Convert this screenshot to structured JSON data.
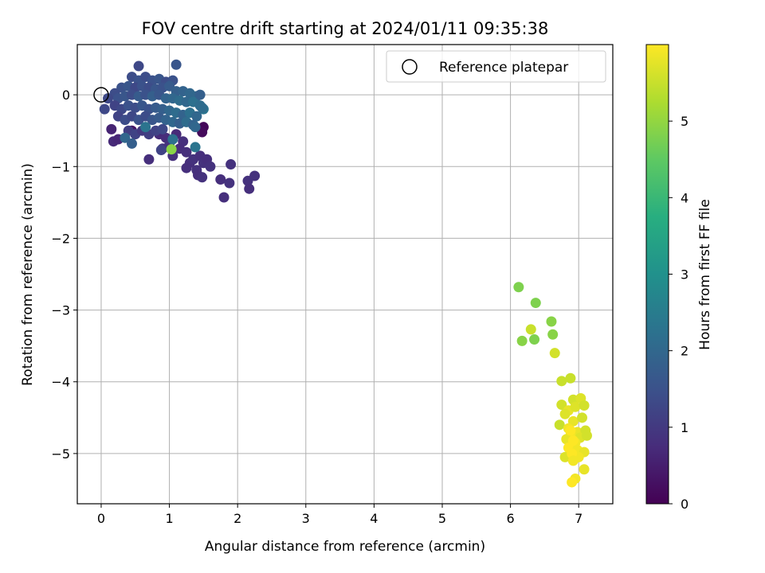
{
  "chart_data": {
    "type": "scatter",
    "title": "FOV centre drift starting at 2024/01/11 09:35:38",
    "xlabel": "Angular distance from reference (arcmin)",
    "ylabel": "Rotation from reference (arcmin)",
    "xlim": [
      -0.35,
      7.5
    ],
    "ylim": [
      -5.7,
      0.7
    ],
    "xticks": [
      0,
      1,
      2,
      3,
      4,
      5,
      6,
      7
    ],
    "yticks": [
      0,
      -1,
      -2,
      -3,
      -4,
      -5
    ],
    "xtick_labels": [
      "0",
      "1",
      "2",
      "3",
      "4",
      "5",
      "6",
      "7"
    ],
    "ytick_labels": [
      "0",
      "−1",
      "−2",
      "−3",
      "−4",
      "−5"
    ],
    "grid": true,
    "legend": {
      "position": "top-right",
      "entries": [
        {
          "label": "Reference platepar",
          "marker": "open-circle"
        }
      ]
    },
    "reference_point": {
      "x": 0,
      "y": 0
    },
    "colorbar": {
      "label": "Hours from first FF file",
      "colormap": "viridis",
      "range": [
        0,
        6
      ],
      "ticks": [
        0,
        1,
        2,
        3,
        4,
        5
      ],
      "tick_labels": [
        "0",
        "1",
        "2",
        "3",
        "4",
        "5"
      ]
    },
    "points": [
      {
        "x": 0.45,
        "y": -0.5,
        "c": 0.3
      },
      {
        "x": 1.5,
        "y": -0.45,
        "c": 0.1
      },
      {
        "x": 1.48,
        "y": -0.52,
        "c": 0.15
      },
      {
        "x": 0.15,
        "y": -0.48,
        "c": 0.6
      },
      {
        "x": 0.18,
        "y": -0.65,
        "c": 0.7
      },
      {
        "x": 0.25,
        "y": -0.62,
        "c": 0.65
      },
      {
        "x": 0.7,
        "y": -0.9,
        "c": 0.8
      },
      {
        "x": 0.85,
        "y": -0.55,
        "c": 0.7
      },
      {
        "x": 0.95,
        "y": -0.6,
        "c": 0.75
      },
      {
        "x": 1.1,
        "y": -0.55,
        "c": 0.7
      },
      {
        "x": 1.2,
        "y": -0.65,
        "c": 0.8
      },
      {
        "x": 1.05,
        "y": -0.85,
        "c": 0.8
      },
      {
        "x": 1.15,
        "y": -0.75,
        "c": 0.75
      },
      {
        "x": 1.25,
        "y": -0.8,
        "c": 0.8
      },
      {
        "x": 1.3,
        "y": -0.95,
        "c": 0.8
      },
      {
        "x": 1.35,
        "y": -0.9,
        "c": 0.85
      },
      {
        "x": 1.45,
        "y": -0.85,
        "c": 0.8
      },
      {
        "x": 1.5,
        "y": -0.95,
        "c": 0.85
      },
      {
        "x": 1.55,
        "y": -0.9,
        "c": 0.8
      },
      {
        "x": 1.6,
        "y": -1.0,
        "c": 0.85
      },
      {
        "x": 1.25,
        "y": -1.02,
        "c": 0.8
      },
      {
        "x": 1.4,
        "y": -1.05,
        "c": 0.85
      },
      {
        "x": 1.42,
        "y": -1.12,
        "c": 0.8
      },
      {
        "x": 1.48,
        "y": -1.15,
        "c": 0.85
      },
      {
        "x": 1.75,
        "y": -1.18,
        "c": 0.8
      },
      {
        "x": 1.88,
        "y": -1.23,
        "c": 0.85
      },
      {
        "x": 1.8,
        "y": -1.43,
        "c": 0.8
      },
      {
        "x": 1.9,
        "y": -0.97,
        "c": 0.85
      },
      {
        "x": 2.15,
        "y": -1.2,
        "c": 0.85
      },
      {
        "x": 2.17,
        "y": -1.31,
        "c": 0.8
      },
      {
        "x": 2.25,
        "y": -1.13,
        "c": 0.85
      },
      {
        "x": 1.0,
        "y": -0.7,
        "c": 0.9
      },
      {
        "x": 0.9,
        "y": -0.75,
        "c": 0.9
      },
      {
        "x": 0.55,
        "y": 0.4,
        "c": 1.3
      },
      {
        "x": 1.1,
        "y": 0.42,
        "c": 1.6
      },
      {
        "x": 0.45,
        "y": 0.25,
        "c": 1.4
      },
      {
        "x": 0.55,
        "y": 0.2,
        "c": 1.5
      },
      {
        "x": 0.65,
        "y": 0.25,
        "c": 1.4
      },
      {
        "x": 0.75,
        "y": 0.2,
        "c": 1.5
      },
      {
        "x": 0.85,
        "y": 0.22,
        "c": 1.6
      },
      {
        "x": 0.95,
        "y": 0.18,
        "c": 1.4
      },
      {
        "x": 1.05,
        "y": 0.2,
        "c": 1.5
      },
      {
        "x": 0.3,
        "y": 0.1,
        "c": 1.5
      },
      {
        "x": 0.4,
        "y": 0.12,
        "c": 1.6
      },
      {
        "x": 0.5,
        "y": 0.1,
        "c": 1.3
      },
      {
        "x": 0.6,
        "y": 0.12,
        "c": 1.5
      },
      {
        "x": 0.7,
        "y": 0.1,
        "c": 1.4
      },
      {
        "x": 0.8,
        "y": 0.08,
        "c": 1.6
      },
      {
        "x": 0.9,
        "y": 0.1,
        "c": 1.5
      },
      {
        "x": 1.0,
        "y": 0.12,
        "c": 1.7
      },
      {
        "x": 1.1,
        "y": 0.05,
        "c": 1.8
      },
      {
        "x": 1.2,
        "y": 0.05,
        "c": 1.9
      },
      {
        "x": 1.3,
        "y": 0.02,
        "c": 2.0
      },
      {
        "x": 1.4,
        "y": -0.02,
        "c": 2.0
      },
      {
        "x": 0.2,
        "y": 0.02,
        "c": 1.4
      },
      {
        "x": 0.1,
        "y": -0.05,
        "c": 1.3
      },
      {
        "x": 0.05,
        "y": -0.2,
        "c": 1.3
      },
      {
        "x": 0.25,
        "y": -0.05,
        "c": 1.5
      },
      {
        "x": 0.35,
        "y": -0.02,
        "c": 1.6
      },
      {
        "x": 0.45,
        "y": 0.0,
        "c": 1.4
      },
      {
        "x": 0.55,
        "y": -0.02,
        "c": 1.7
      },
      {
        "x": 0.65,
        "y": 0.0,
        "c": 1.5
      },
      {
        "x": 0.75,
        "y": -0.02,
        "c": 1.8
      },
      {
        "x": 0.85,
        "y": 0.0,
        "c": 1.6
      },
      {
        "x": 0.95,
        "y": -0.05,
        "c": 1.9
      },
      {
        "x": 1.05,
        "y": -0.05,
        "c": 2.0
      },
      {
        "x": 1.15,
        "y": -0.08,
        "c": 2.1
      },
      {
        "x": 1.25,
        "y": -0.1,
        "c": 2.0
      },
      {
        "x": 1.35,
        "y": -0.1,
        "c": 2.2
      },
      {
        "x": 1.45,
        "y": -0.15,
        "c": 2.1
      },
      {
        "x": 1.5,
        "y": -0.2,
        "c": 2.3
      },
      {
        "x": 0.2,
        "y": -0.15,
        "c": 1.2
      },
      {
        "x": 0.3,
        "y": -0.2,
        "c": 1.3
      },
      {
        "x": 0.4,
        "y": -0.15,
        "c": 1.5
      },
      {
        "x": 0.5,
        "y": -0.18,
        "c": 1.4
      },
      {
        "x": 0.6,
        "y": -0.15,
        "c": 1.6
      },
      {
        "x": 0.7,
        "y": -0.2,
        "c": 1.5
      },
      {
        "x": 0.8,
        "y": -0.18,
        "c": 1.7
      },
      {
        "x": 0.9,
        "y": -0.2,
        "c": 1.8
      },
      {
        "x": 1.0,
        "y": -0.22,
        "c": 2.0
      },
      {
        "x": 1.1,
        "y": -0.25,
        "c": 2.1
      },
      {
        "x": 1.2,
        "y": -0.28,
        "c": 1.9
      },
      {
        "x": 1.3,
        "y": -0.25,
        "c": 2.2
      },
      {
        "x": 1.4,
        "y": -0.3,
        "c": 2.0
      },
      {
        "x": 0.25,
        "y": -0.3,
        "c": 1.2
      },
      {
        "x": 0.35,
        "y": -0.35,
        "c": 1.4
      },
      {
        "x": 0.45,
        "y": -0.3,
        "c": 1.3
      },
      {
        "x": 0.55,
        "y": -0.35,
        "c": 1.5
      },
      {
        "x": 0.65,
        "y": -0.3,
        "c": 1.4
      },
      {
        "x": 0.75,
        "y": -0.35,
        "c": 1.6
      },
      {
        "x": 0.85,
        "y": -0.32,
        "c": 1.7
      },
      {
        "x": 0.95,
        "y": -0.35,
        "c": 1.9
      },
      {
        "x": 1.05,
        "y": -0.38,
        "c": 2.0
      },
      {
        "x": 1.15,
        "y": -0.4,
        "c": 1.8
      },
      {
        "x": 1.25,
        "y": -0.38,
        "c": 2.1
      },
      {
        "x": 1.35,
        "y": -0.42,
        "c": 1.9
      },
      {
        "x": 0.4,
        "y": -0.5,
        "c": 1.1
      },
      {
        "x": 0.5,
        "y": -0.55,
        "c": 1.2
      },
      {
        "x": 0.6,
        "y": -0.5,
        "c": 1.0
      },
      {
        "x": 0.7,
        "y": -0.55,
        "c": 1.1
      },
      {
        "x": 0.8,
        "y": -0.5,
        "c": 1.2
      },
      {
        "x": 0.9,
        "y": -0.48,
        "c": 1.3
      },
      {
        "x": 0.35,
        "y": -0.6,
        "c": 2.0
      },
      {
        "x": 0.45,
        "y": -0.68,
        "c": 1.8
      },
      {
        "x": 0.65,
        "y": -0.45,
        "c": 2.3
      },
      {
        "x": 1.05,
        "y": -0.62,
        "c": 2.2
      },
      {
        "x": 1.38,
        "y": -0.73,
        "c": 2.3
      },
      {
        "x": 0.88,
        "y": -0.77,
        "c": 1.2
      },
      {
        "x": 1.38,
        "y": -0.45,
        "c": 2.0
      },
      {
        "x": 1.45,
        "y": 0.0,
        "c": 1.8
      },
      {
        "x": 1.48,
        "y": -0.18,
        "c": 2.1
      },
      {
        "x": 1.03,
        "y": -0.76,
        "c": 4.9
      },
      {
        "x": 6.12,
        "y": -2.68,
        "c": 4.8
      },
      {
        "x": 6.37,
        "y": -2.9,
        "c": 4.8
      },
      {
        "x": 6.6,
        "y": -3.16,
        "c": 4.9
      },
      {
        "x": 6.62,
        "y": -3.34,
        "c": 4.9
      },
      {
        "x": 6.17,
        "y": -3.43,
        "c": 4.9
      },
      {
        "x": 6.35,
        "y": -3.41,
        "c": 4.8
      },
      {
        "x": 6.3,
        "y": -3.27,
        "c": 5.5
      },
      {
        "x": 6.65,
        "y": -3.6,
        "c": 5.6
      },
      {
        "x": 6.75,
        "y": -3.99,
        "c": 5.5
      },
      {
        "x": 6.88,
        "y": -3.95,
        "c": 5.5
      },
      {
        "x": 6.92,
        "y": -4.25,
        "c": 5.6
      },
      {
        "x": 7.03,
        "y": -4.23,
        "c": 5.7
      },
      {
        "x": 6.75,
        "y": -4.32,
        "c": 5.6
      },
      {
        "x": 6.85,
        "y": -4.4,
        "c": 5.8
      },
      {
        "x": 6.95,
        "y": -4.35,
        "c": 5.7
      },
      {
        "x": 7.08,
        "y": -4.33,
        "c": 5.6
      },
      {
        "x": 6.8,
        "y": -4.45,
        "c": 5.7
      },
      {
        "x": 6.92,
        "y": -4.55,
        "c": 5.8
      },
      {
        "x": 7.05,
        "y": -4.5,
        "c": 5.6
      },
      {
        "x": 6.72,
        "y": -4.6,
        "c": 5.5
      },
      {
        "x": 6.85,
        "y": -4.65,
        "c": 5.9
      },
      {
        "x": 6.98,
        "y": -4.7,
        "c": 5.8
      },
      {
        "x": 7.1,
        "y": -4.68,
        "c": 5.6
      },
      {
        "x": 6.88,
        "y": -4.75,
        "c": 5.9
      },
      {
        "x": 7.02,
        "y": -4.78,
        "c": 5.7
      },
      {
        "x": 7.12,
        "y": -4.75,
        "c": 5.6
      },
      {
        "x": 6.82,
        "y": -4.8,
        "c": 5.8
      },
      {
        "x": 6.95,
        "y": -4.85,
        "c": 5.9
      },
      {
        "x": 6.85,
        "y": -4.92,
        "c": 6.0
      },
      {
        "x": 6.98,
        "y": -4.95,
        "c": 5.9
      },
      {
        "x": 7.08,
        "y": -4.98,
        "c": 5.8
      },
      {
        "x": 6.8,
        "y": -5.05,
        "c": 5.7
      },
      {
        "x": 7.0,
        "y": -5.05,
        "c": 5.9
      },
      {
        "x": 6.9,
        "y": -5.0,
        "c": 6.0
      },
      {
        "x": 6.92,
        "y": -5.1,
        "c": 5.9
      },
      {
        "x": 7.08,
        "y": -5.22,
        "c": 5.8
      },
      {
        "x": 6.95,
        "y": -5.35,
        "c": 5.9
      },
      {
        "x": 6.9,
        "y": -5.4,
        "c": 6.0
      },
      {
        "x": 6.88,
        "y": -4.68,
        "c": 6.0
      },
      {
        "x": 6.92,
        "y": -4.82,
        "c": 6.0
      }
    ]
  }
}
